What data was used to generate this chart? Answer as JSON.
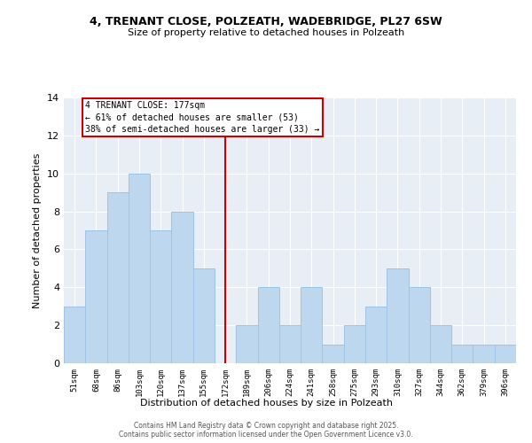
{
  "title": "4, TRENANT CLOSE, POLZEATH, WADEBRIDGE, PL27 6SW",
  "subtitle": "Size of property relative to detached houses in Polzeath",
  "xlabel": "Distribution of detached houses by size in Polzeath",
  "ylabel": "Number of detached properties",
  "categories": [
    "51sqm",
    "68sqm",
    "86sqm",
    "103sqm",
    "120sqm",
    "137sqm",
    "155sqm",
    "172sqm",
    "189sqm",
    "206sqm",
    "224sqm",
    "241sqm",
    "258sqm",
    "275sqm",
    "293sqm",
    "310sqm",
    "327sqm",
    "344sqm",
    "362sqm",
    "379sqm",
    "396sqm"
  ],
  "values": [
    3,
    7,
    9,
    10,
    7,
    8,
    5,
    0,
    2,
    4,
    2,
    4,
    1,
    2,
    3,
    5,
    4,
    2,
    1,
    1,
    1
  ],
  "bar_color": "#bdd7ee",
  "bar_edge_color": "#9dc3e6",
  "red_line_index": 7,
  "red_line_color": "#cc0000",
  "annotation_text": "4 TRENANT CLOSE: 177sqm\n← 61% of detached houses are smaller (53)\n38% of semi-detached houses are larger (33) →",
  "ylim": [
    0,
    14
  ],
  "yticks": [
    0,
    2,
    4,
    6,
    8,
    10,
    12,
    14
  ],
  "background_color": "#e8eef5",
  "grid_color": "#ffffff",
  "footer_line1": "Contains HM Land Registry data © Crown copyright and database right 2025.",
  "footer_line2": "Contains public sector information licensed under the Open Government Licence v3.0."
}
